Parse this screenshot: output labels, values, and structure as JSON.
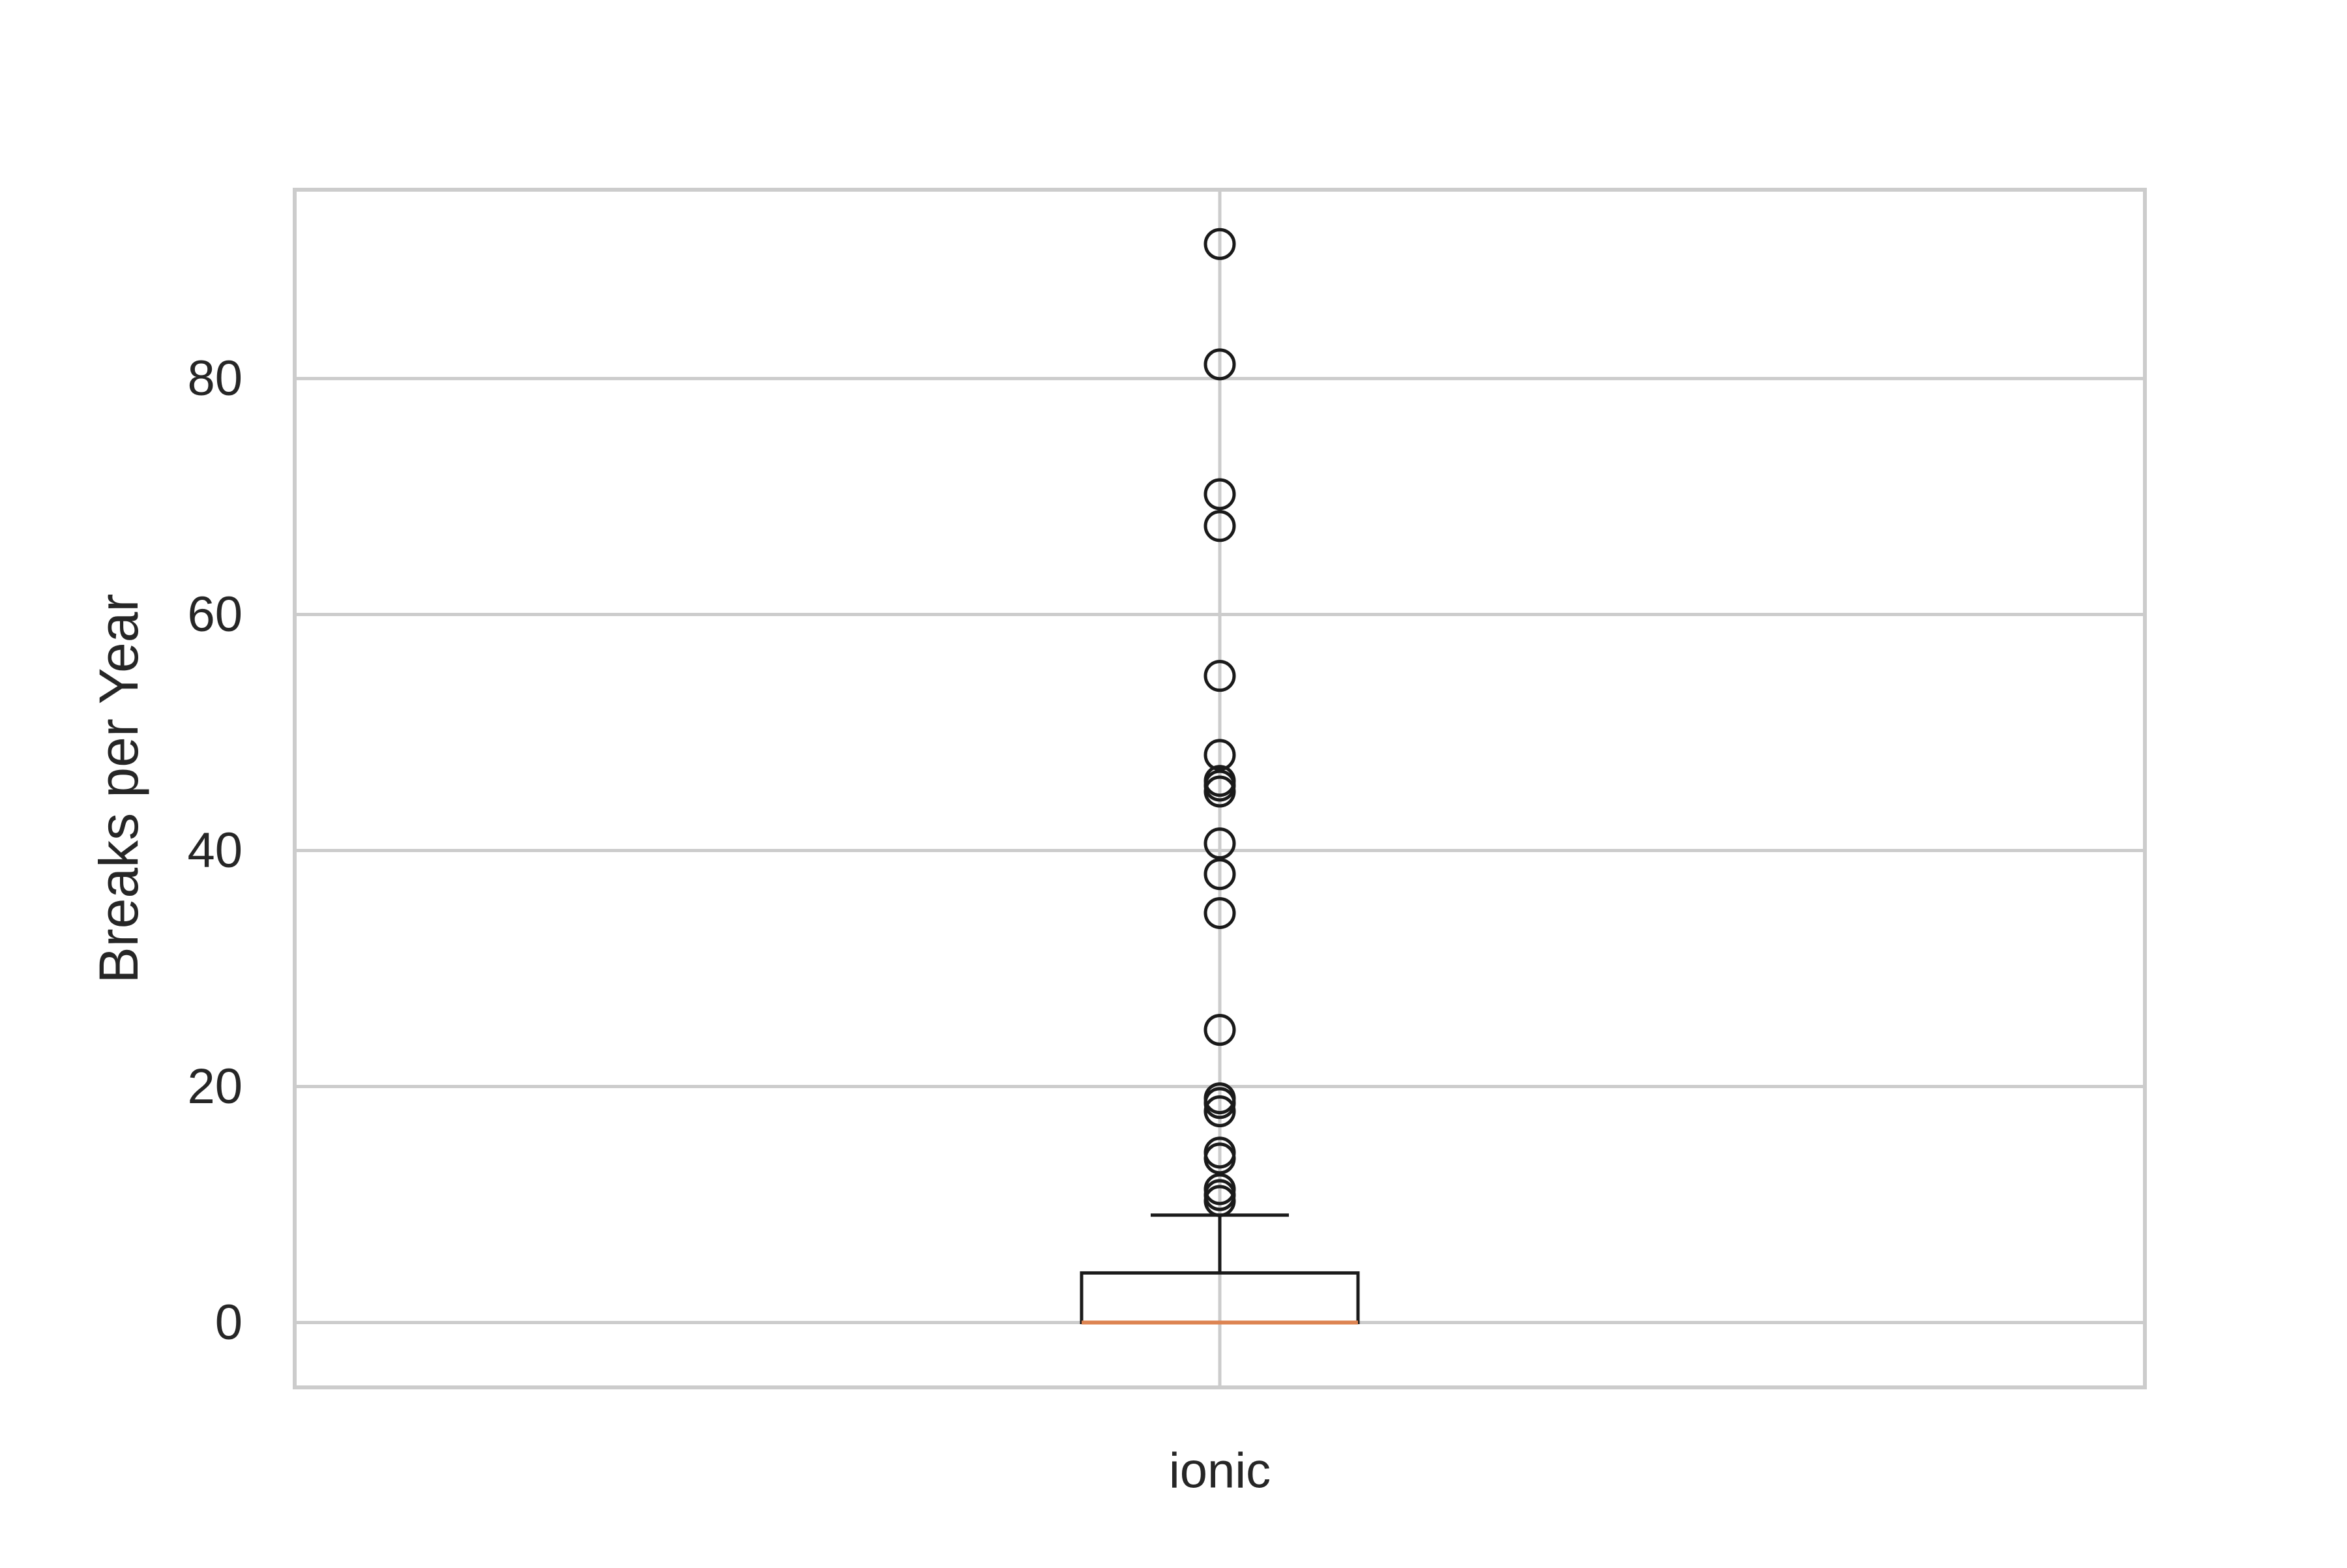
{
  "chart_data": {
    "type": "box",
    "categories": [
      "ionic"
    ],
    "ylabel": "Breaks per Year",
    "xlabel": "",
    "ylim": [
      -5.5,
      96
    ],
    "yticks": [
      0,
      20,
      40,
      60,
      80
    ],
    "grid": true,
    "boxes": [
      {
        "category": "ionic",
        "whisker_low": 0,
        "q1": 0,
        "median": 0,
        "q3": 4.2,
        "whisker_high": 9.1,
        "outliers": [
          10.3,
          10.8,
          11.3,
          13.9,
          14.4,
          17.9,
          18.6,
          19.0,
          24.8,
          34.7,
          38.0,
          40.6,
          45.0,
          45.5,
          45.9,
          48.1,
          54.8,
          67.5,
          70.2,
          81.2,
          91.4
        ]
      }
    ],
    "colors": {
      "grid": "#cccccc",
      "box": "#1a1a1a",
      "median": "#dd8452",
      "text": "#262626"
    }
  }
}
